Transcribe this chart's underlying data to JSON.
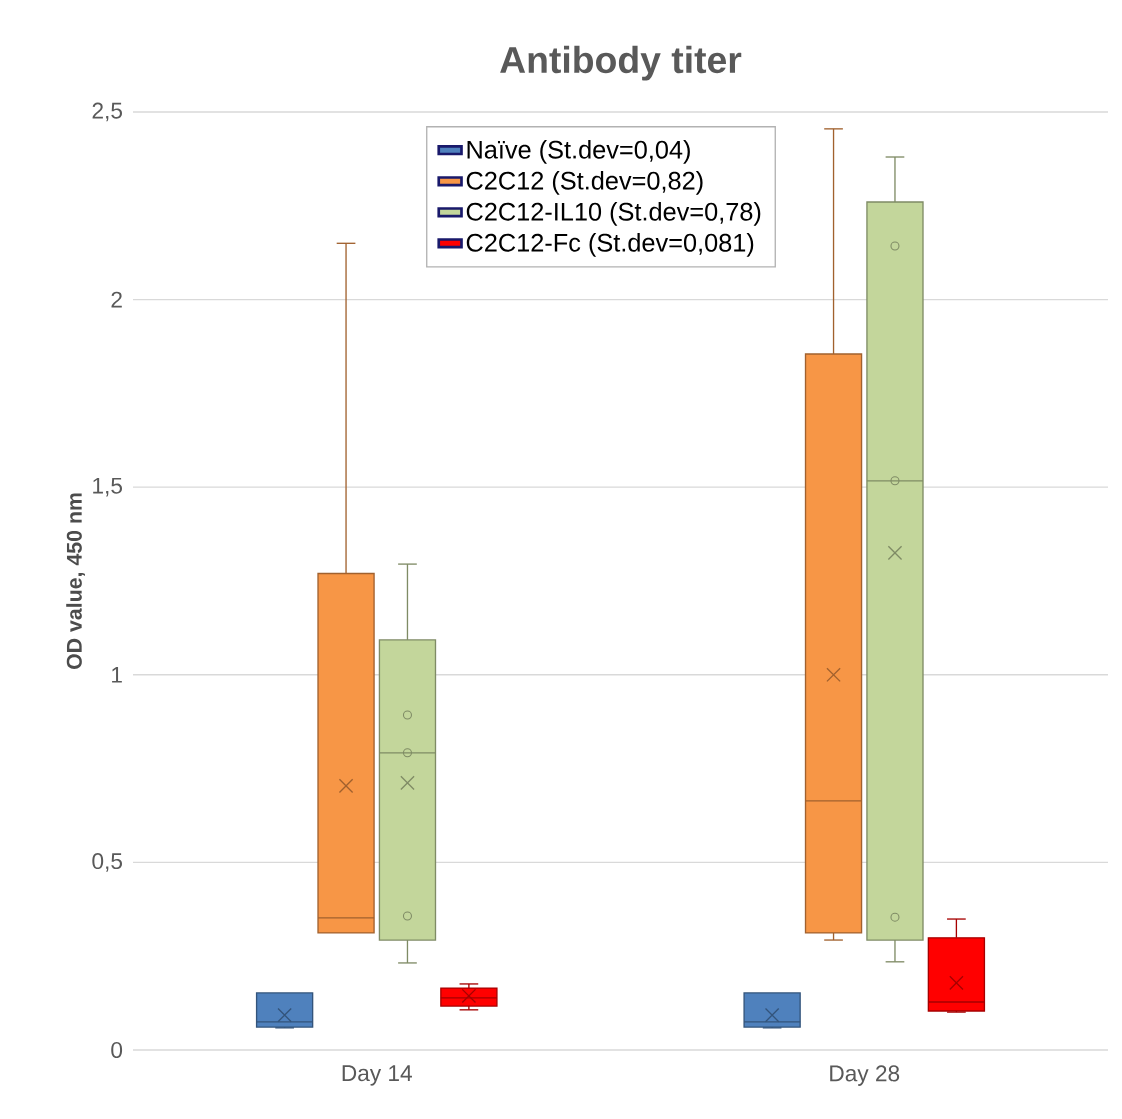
{
  "chart_data": {
    "type": "box",
    "title": "Antibody titer",
    "ylabel": "OD value, 450 nm",
    "categories": [
      "Day 14",
      "Day 28"
    ],
    "ylim": [
      0,
      2.5
    ],
    "yticks": [
      0,
      {
        "value": 0.5,
        "label": "0,5"
      },
      1,
      {
        "value": 1.5,
        "label": "1,5"
      },
      2,
      {
        "value": 2.5,
        "label": "2,5"
      }
    ],
    "grid": "y",
    "legend": "top",
    "series": [
      {
        "name": "Naïve (St.dev=0,04)",
        "color": "#4f81bd",
        "boxes": [
          {
            "low": 0.059,
            "q1": 0.061,
            "median": 0.075,
            "q3": 0.152,
            "high": 0.152,
            "mean": 0.093
          },
          {
            "low": 0.059,
            "q1": 0.061,
            "median": 0.075,
            "q3": 0.152,
            "high": 0.152,
            "mean": 0.093
          }
        ]
      },
      {
        "name": "C2C12 (St.dev=0,82)",
        "color": "#f79646",
        "boxes": [
          {
            "low": 0.312,
            "q1": 0.312,
            "median": 0.352,
            "q3": 1.27,
            "high": 2.15,
            "mean": 0.704
          },
          {
            "low": 0.293,
            "q1": 0.312,
            "median": 0.664,
            "q3": 1.855,
            "high": 2.455,
            "mean": 1.0
          }
        ]
      },
      {
        "name": "C2C12-IL10 (St.dev=0,78)",
        "color": "#c3d69b",
        "boxes": [
          {
            "low": 0.232,
            "q1": 0.293,
            "median": 0.792,
            "q3": 1.093,
            "high": 1.295,
            "mean": 0.712,
            "outliers": [
              0.893,
              0.792,
              0.357
            ]
          },
          {
            "low": 0.235,
            "q1": 0.293,
            "median": 1.517,
            "q3": 2.26,
            "high": 2.38,
            "mean": 1.325,
            "outliers": [
              2.143,
              1.517,
              0.354
            ]
          }
        ]
      },
      {
        "name": "C2C12-Fc (St.dev=0,081)",
        "color": "#ff0000",
        "boxes": [
          {
            "low": 0.107,
            "q1": 0.117,
            "median": 0.139,
            "q3": 0.165,
            "high": 0.176,
            "mean": 0.144
          },
          {
            "low": 0.101,
            "q1": 0.104,
            "median": 0.128,
            "q3": 0.299,
            "high": 0.349,
            "mean": 0.179
          }
        ]
      }
    ]
  }
}
